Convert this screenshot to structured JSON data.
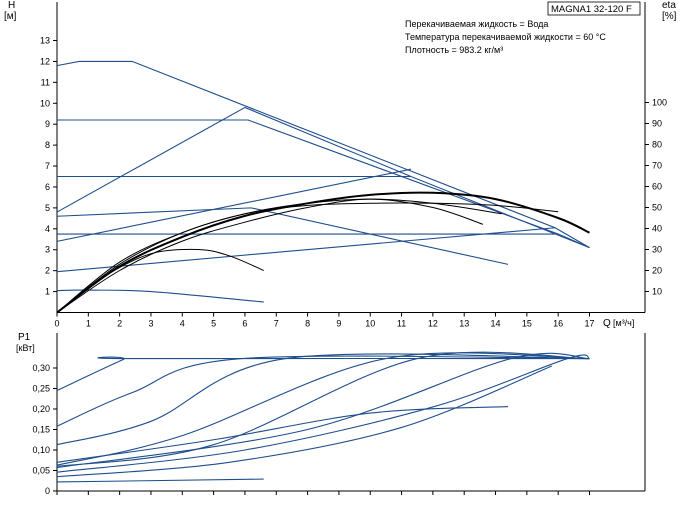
{
  "colors": {
    "blue": "#1f4e8c",
    "black": "#000000",
    "axis": "#000000"
  },
  "chart_data": [
    {
      "type": "line",
      "title": "MAGNA1 32-120 F",
      "info_lines": [
        "Перекачиваемая жидкость = Вода",
        "Температура перекачиваемой жидкости = 60 °C",
        "Плотность = 983.2 кг/м³"
      ],
      "ylabel": "H",
      "yunit": "[м]",
      "y2label": "eta",
      "y2unit": "[%]",
      "xlabel": "Q",
      "xunit": "[м³/ч]",
      "xlim": [
        0,
        17.5
      ],
      "ylim": [
        0,
        14
      ],
      "y2lim": [
        0,
        100
      ],
      "x_ticks": [
        "0",
        "1",
        "2",
        "3",
        "4",
        "5",
        "6",
        "7",
        "8",
        "9",
        "10",
        "11",
        "12",
        "13",
        "14",
        "15",
        "16",
        "17"
      ],
      "y_ticks": [
        "1",
        "2",
        "3",
        "4",
        "5",
        "6",
        "7",
        "8",
        "9",
        "10",
        "11",
        "12",
        "13"
      ],
      "y2_ticks": [
        "10",
        "20",
        "30",
        "40",
        "50",
        "60",
        "70",
        "80",
        "90",
        "100"
      ],
      "grid": false,
      "head_series": [
        {
          "style": "blue",
          "x": [
            0,
            0.7,
            2.4,
            15.9,
            17
          ],
          "y": [
            11.8,
            12.0,
            12.0,
            4.05,
            3.1
          ]
        },
        {
          "style": "blue",
          "x": [
            0,
            6.1,
            16.0,
            17
          ],
          "y": [
            9.2,
            9.2,
            3.75,
            3.1
          ]
        },
        {
          "style": "blue",
          "x": [
            0,
            11.3,
            17
          ],
          "y": [
            6.5,
            6.5,
            3.1
          ]
        },
        {
          "style": "blue",
          "x": [
            0,
            6.2,
            14.4
          ],
          "y": [
            4.6,
            5.0,
            2.3
          ]
        },
        {
          "style": "blue",
          "x": [
            0,
            15.9
          ],
          "y": [
            3.75,
            3.75
          ]
        },
        {
          "style": "blue",
          "x": [
            0,
            1.0,
            3.0,
            6.6
          ],
          "y": [
            1.05,
            1.07,
            1.0,
            0.5
          ]
        }
      ],
      "system_curves": [
        {
          "x": [
            0,
            6.0,
            11.3
          ],
          "y": [
            4.8,
            9.8,
            6.5
          ]
        },
        {
          "x": [
            0,
            11.3
          ],
          "y": [
            3.4,
            6.85
          ]
        },
        {
          "x": [
            0,
            15.9
          ],
          "y": [
            1.95,
            4.05
          ]
        }
      ],
      "efficiency_series": [
        {
          "style": "bold",
          "x": [
            0,
            2,
            4,
            6,
            8,
            10,
            12,
            14,
            16,
            17
          ],
          "y": [
            0,
            22,
            36,
            46,
            52,
            56,
            57,
            54,
            45,
            38
          ]
        },
        {
          "style": "thin",
          "x": [
            0,
            2,
            4,
            6,
            8,
            10,
            12,
            14,
            16
          ],
          "y": [
            0,
            24,
            38,
            47,
            51,
            52,
            52,
            51,
            48
          ]
        },
        {
          "style": "thin",
          "x": [
            0,
            2,
            4,
            6,
            8,
            10,
            12,
            14.2
          ],
          "y": [
            0,
            23,
            38,
            47,
            52,
            54,
            52,
            47
          ]
        },
        {
          "style": "thin",
          "x": [
            0,
            2,
            4,
            6,
            8,
            10,
            12,
            13.6
          ],
          "y": [
            0,
            20,
            34,
            43,
            50,
            54,
            50,
            42
          ]
        },
        {
          "style": "thin",
          "x": [
            0,
            1.5,
            3,
            4.5,
            5.5,
            6.6
          ],
          "y": [
            0,
            17,
            28,
            30,
            27,
            20
          ]
        }
      ]
    },
    {
      "type": "line",
      "ylabel": "P1",
      "yunit": "[кВт]",
      "xlim": [
        0,
        17.5
      ],
      "ylim": [
        0,
        0.35
      ],
      "y_ticks": [
        "0",
        "0,05",
        "0,10",
        "0,15",
        "0,20",
        "0,25",
        "0,30"
      ],
      "y_tick_values": [
        0,
        0.05,
        0.1,
        0.15,
        0.2,
        0.25,
        0.3
      ],
      "grid": false,
      "power_series": [
        {
          "x": [
            0,
            2.1,
            2.4,
            17
          ],
          "y": [
            0.245,
            0.32,
            0.323,
            0.323
          ]
        },
        {
          "x": [
            0,
            2.4,
            5.9,
            17
          ],
          "y": [
            0.158,
            0.24,
            0.323,
            0.323
          ]
        },
        {
          "x": [
            0,
            3.0,
            7.3,
            17
          ],
          "y": [
            0.113,
            0.17,
            0.323,
            0.323
          ]
        },
        {
          "x": [
            0,
            4.0,
            10.5,
            17
          ],
          "y": [
            0.063,
            0.135,
            0.323,
            0.323
          ]
        },
        {
          "x": [
            0,
            5.0,
            11.5,
            17
          ],
          "y": [
            0.06,
            0.113,
            0.323,
            0.323
          ]
        },
        {
          "x": [
            0,
            8.0,
            14.5,
            17
          ],
          "y": [
            0.057,
            0.15,
            0.323,
            0.323
          ]
        },
        {
          "x": [
            0,
            6.0,
            12.0,
            16.3,
            17
          ],
          "y": [
            0.046,
            0.1,
            0.205,
            0.323,
            0.323
          ]
        },
        {
          "x": [
            0,
            5.0,
            10.0,
            14.4
          ],
          "y": [
            0.07,
            0.125,
            0.19,
            0.206
          ]
        },
        {
          "x": [
            0,
            5.5,
            11.0,
            15.8
          ],
          "y": [
            0.035,
            0.07,
            0.155,
            0.305
          ]
        },
        {
          "x": [
            0,
            6.6
          ],
          "y": [
            0.022,
            0.029
          ]
        }
      ]
    }
  ]
}
